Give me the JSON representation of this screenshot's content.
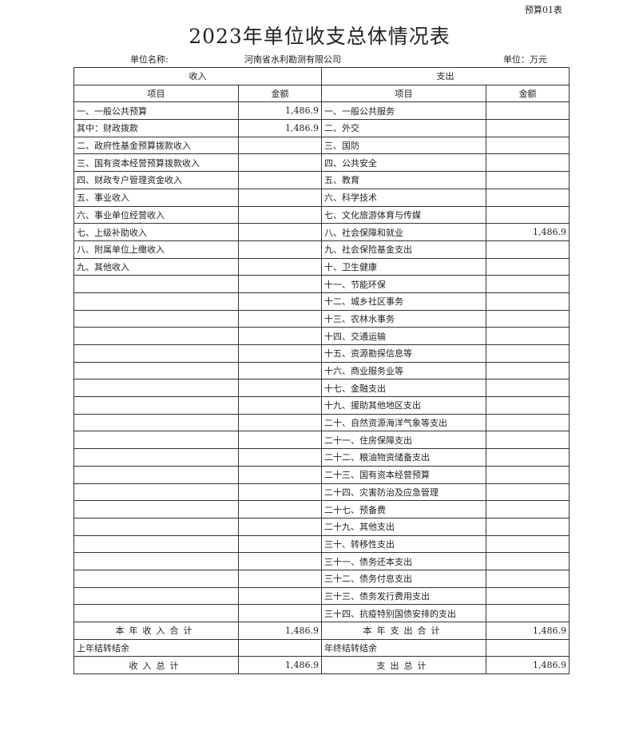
{
  "form_no": "预算01表",
  "title": "2023年单位收支总体情况表",
  "unit_label": "单位名称:",
  "unit_value": "河南省水利勘测有限公司",
  "currency": "单位：万元",
  "headers": {
    "income": "收入",
    "expense": "支出",
    "item": "项目",
    "amount": "金额"
  },
  "rows": [
    [
      "一、一般公共预算",
      "1,486.9",
      "一、一般公共服务",
      ""
    ],
    [
      "其中：财政拨款",
      "1,486.9",
      "二、外交",
      ""
    ],
    [
      "二、政府性基金预算拨款收入",
      "",
      "三、国防",
      ""
    ],
    [
      "三、国有资本经营预算拨款收入",
      "",
      "四、公共安全",
      ""
    ],
    [
      "四、财政专户管理资金收入",
      "",
      "五、教育",
      ""
    ],
    [
      "五、事业收入",
      "",
      "六、科学技术",
      ""
    ],
    [
      "六、事业单位经营收入",
      "",
      "七、文化旅游体育与传媒",
      ""
    ],
    [
      "七、上级补助收入",
      "",
      "八、社会保障和就业",
      "1,486.9"
    ],
    [
      "八、附属单位上缴收入",
      "",
      "九、社会保险基金支出",
      ""
    ],
    [
      "九、其他收入",
      "",
      "十、卫生健康",
      ""
    ],
    [
      "",
      "",
      "十一、节能环保",
      ""
    ],
    [
      "",
      "",
      "十二、城乡社区事务",
      ""
    ],
    [
      "",
      "",
      "十三、农林水事务",
      ""
    ],
    [
      "",
      "",
      "十四、交通运输",
      ""
    ],
    [
      "",
      "",
      "十五、资源勘探信息等",
      ""
    ],
    [
      "",
      "",
      "十六、商业服务业等",
      ""
    ],
    [
      "",
      "",
      "十七、金融支出",
      ""
    ],
    [
      "",
      "",
      "十九、援助其他地区支出",
      ""
    ],
    [
      "",
      "",
      "二十、自然资源海洋气象等支出",
      ""
    ],
    [
      "",
      "",
      "二十一、住房保障支出",
      ""
    ],
    [
      "",
      "",
      "二十二、粮油物资储备支出",
      ""
    ],
    [
      "",
      "",
      "二十三、国有资本经营预算",
      ""
    ],
    [
      "",
      "",
      "二十四、灾害防治及应急管理",
      ""
    ],
    [
      "",
      "",
      "二十七、预备费",
      ""
    ],
    [
      "",
      "",
      "二十九、其他支出",
      ""
    ],
    [
      "",
      "",
      "三十、转移性支出",
      ""
    ],
    [
      "",
      "",
      "三十一、债务还本支出",
      ""
    ],
    [
      "",
      "",
      "三十二、债务付息支出",
      ""
    ],
    [
      "",
      "",
      "三十三、债务发行费用支出",
      ""
    ],
    [
      "",
      "",
      "三十四、抗疫特别国债安排的支出",
      ""
    ]
  ],
  "summary": [
    [
      "本年收入合计",
      "1,486.9",
      "本年支出合计",
      "1,486.9"
    ],
    [
      "上年结转结余",
      "",
      "年终结转结余",
      ""
    ],
    [
      "收入总计",
      "1,486.9",
      "支出总计",
      "1,486.9"
    ]
  ]
}
